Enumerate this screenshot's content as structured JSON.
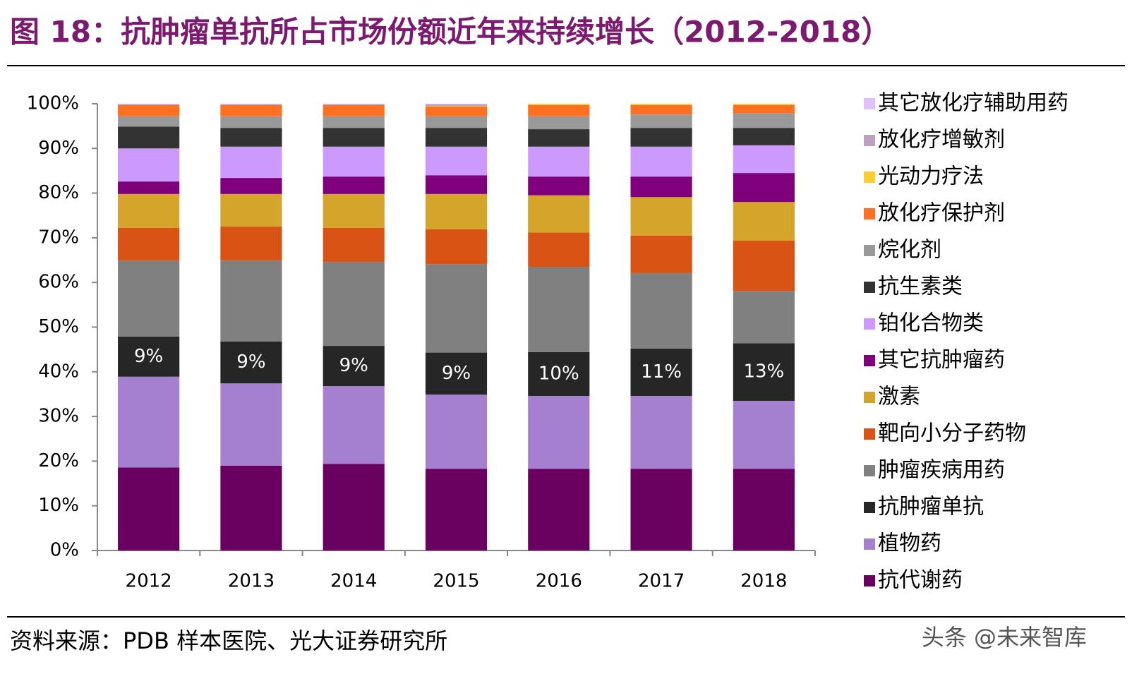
{
  "chart_data": {
    "type": "stacked_bar",
    "title": "图 18：抗肿瘤单抗所占市场份额近年来持续增长（2012-2018）",
    "categories": [
      "2012",
      "2013",
      "2014",
      "2015",
      "2016",
      "2017",
      "2018"
    ],
    "ylim": [
      0,
      100
    ],
    "yticks": [
      {
        "value": 0,
        "label": "0%"
      },
      {
        "value": 10,
        "label": "10%"
      },
      {
        "value": 20,
        "label": "20%"
      },
      {
        "value": 30,
        "label": "30%"
      },
      {
        "value": 40,
        "label": "40%"
      },
      {
        "value": 50,
        "label": "50%"
      },
      {
        "value": 60,
        "label": "60%"
      },
      {
        "value": 70,
        "label": "70%"
      },
      {
        "value": 80,
        "label": "80%"
      },
      {
        "value": 90,
        "label": "90%"
      },
      {
        "value": 100,
        "label": "100%"
      }
    ],
    "grid": false,
    "legend": "right",
    "series": [
      {
        "name": "抗代谢药",
        "color": "#6a0060",
        "values": [
          18.6,
          19.0,
          19.4,
          18.3,
          18.3,
          18.3,
          18.3
        ]
      },
      {
        "name": "植物药",
        "color": "#a57fd0",
        "values": [
          20.3,
          18.4,
          17.4,
          16.6,
          16.3,
          16.3,
          15.2
        ]
      },
      {
        "name": "抗肿瘤单抗",
        "color": "#262626",
        "values": [
          9.0,
          9.4,
          9.0,
          9.4,
          9.8,
          10.6,
          12.9
        ],
        "value_labels": [
          "9%",
          "9%",
          "9%",
          "9%",
          "10%",
          "11%",
          "13%"
        ]
      },
      {
        "name": "肿瘤疾病用药",
        "color": "#808080",
        "values": [
          17.0,
          18.1,
          18.8,
          19.8,
          19.1,
          16.9,
          11.7
        ]
      },
      {
        "name": "靶向小分子药物",
        "color": "#d95414",
        "values": [
          7.3,
          7.6,
          7.6,
          7.8,
          7.7,
          8.4,
          11.3
        ]
      },
      {
        "name": "激素",
        "color": "#d4a52a",
        "values": [
          7.6,
          7.3,
          7.6,
          7.9,
          8.3,
          8.6,
          8.6
        ]
      },
      {
        "name": "其它抗肿瘤药",
        "color": "#80007c",
        "values": [
          2.8,
          3.6,
          3.9,
          4.2,
          4.2,
          4.6,
          6.5
        ]
      },
      {
        "name": "铂化合物类",
        "color": "#cc99ff",
        "values": [
          7.4,
          7.0,
          6.7,
          6.4,
          6.7,
          6.7,
          6.2
        ]
      },
      {
        "name": "抗生素类",
        "color": "#333333",
        "values": [
          4.9,
          4.2,
          4.2,
          4.2,
          3.9,
          4.2,
          3.9
        ]
      },
      {
        "name": "烷化剂",
        "color": "#999999",
        "values": [
          2.3,
          2.6,
          2.6,
          2.6,
          2.9,
          3.0,
          3.3
        ]
      },
      {
        "name": "放化疗保护剂",
        "color": "#ff7020",
        "values": [
          2.5,
          2.5,
          2.5,
          2.2,
          2.5,
          2.1,
          1.8
        ]
      },
      {
        "name": "光动力疗法",
        "color": "#ffcc33",
        "values": [
          0,
          0,
          0,
          0.1,
          0.3,
          0.3,
          0.3
        ]
      },
      {
        "name": "放化疗增敏剂",
        "color": "#c0a0c0",
        "values": [
          0.2,
          0.2,
          0.2,
          0.4,
          0,
          0,
          0
        ]
      },
      {
        "name": "其它放化疗辅助用药",
        "color": "#e0c0ff",
        "values": [
          0.1,
          0.1,
          0.1,
          0.1,
          0,
          0,
          0
        ]
      }
    ]
  },
  "source": "资料来源：PDB 样本医院、光大证券研究所",
  "watermark": "头条 @未来智库"
}
